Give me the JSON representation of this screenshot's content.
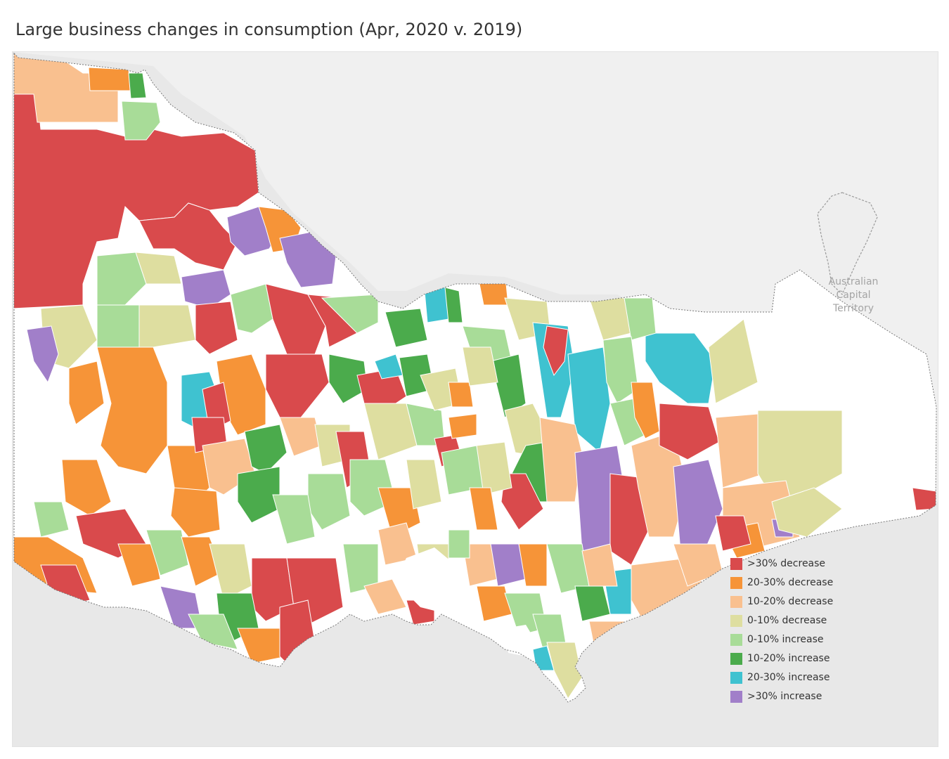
{
  "title": "Large business changes in consumption (Apr, 2020 v. 2019)",
  "map": {
    "region_label_lines": [
      "Australian",
      "Capital",
      "Territory"
    ],
    "colors": {
      "background": "#e8e8e8",
      "land": "#f3f3f3",
      "victoria_no_data": "#ffffff",
      "water": "#ffffff",
      "boundary": "#ffffff",
      "outline": "#777777"
    }
  },
  "legend": [
    {
      "label": ">30% decrease",
      "color": "#d94a4c"
    },
    {
      "label": "20-30% decrease",
      "color": "#f69438"
    },
    {
      "label": "10-20% decrease",
      "color": "#f9c08f"
    },
    {
      "label": "0-10% decrease",
      "color": "#dedea0"
    },
    {
      "label": "0-10% increase",
      "color": "#a8dc98"
    },
    {
      "label": "10-20% increase",
      "color": "#4bab4c"
    },
    {
      "label": "20-30% increase",
      "color": "#3fc2d0"
    },
    {
      "label": ">30% increase",
      "color": "#a17fc9"
    }
  ]
}
